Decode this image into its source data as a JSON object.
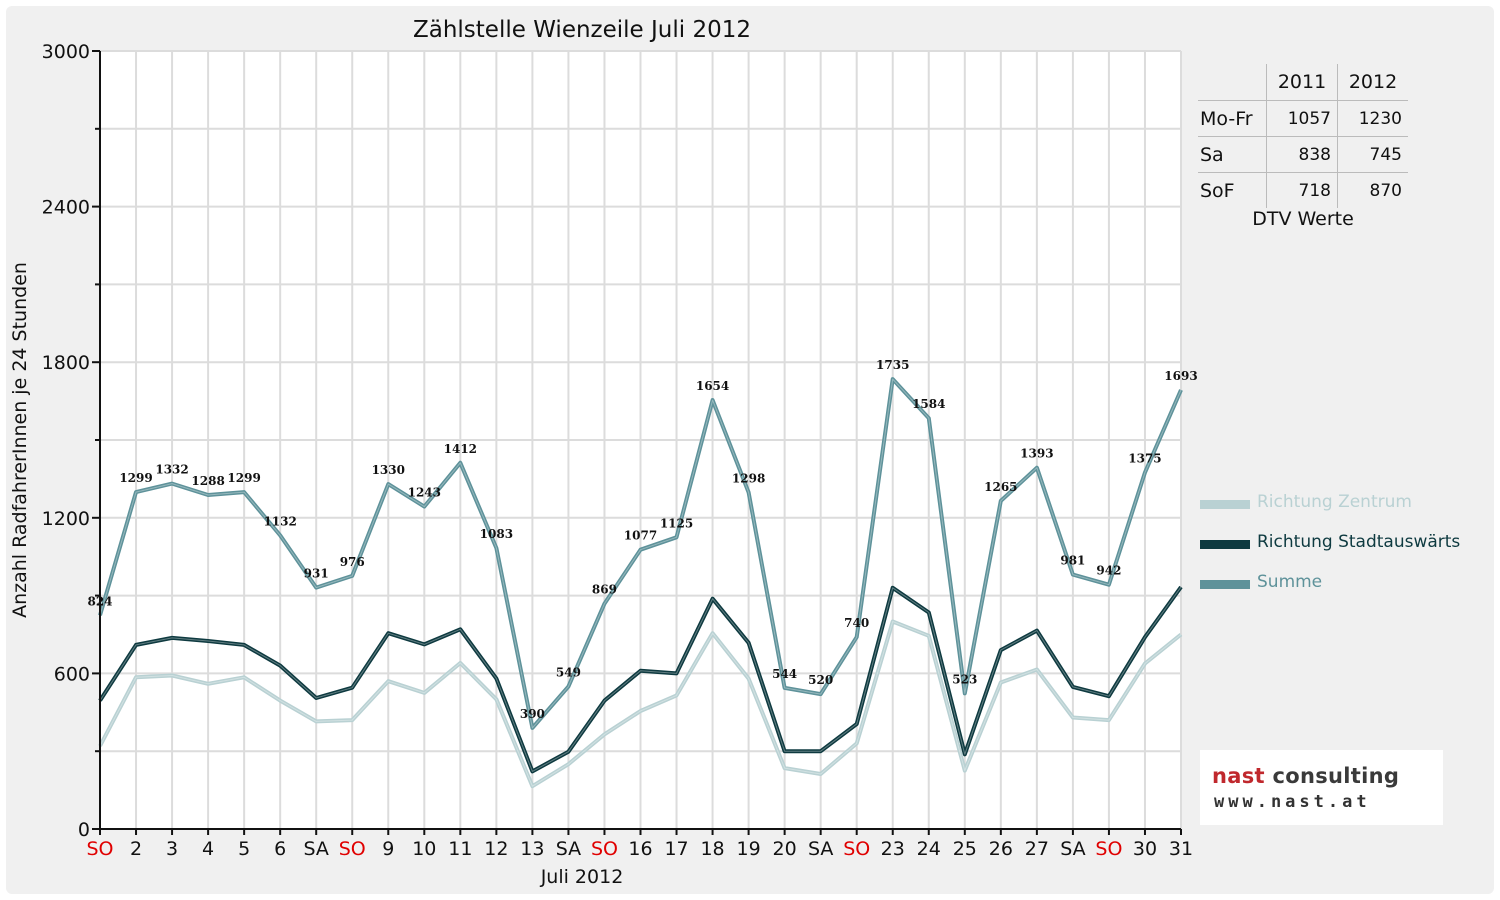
{
  "chart_data": {
    "type": "line",
    "title": "Zählstelle Wienzeile Juli 2012",
    "xlabel": "Juli 2012",
    "ylabel": "Anzahl RadfahrerInnen je 24 Stunden",
    "ylim": [
      0,
      3000
    ],
    "yticks": [
      "0",
      "600",
      "1200",
      "1800",
      "2400",
      "3000"
    ],
    "grid": true,
    "legend_position": "right",
    "categories": [
      "SO",
      "2",
      "3",
      "4",
      "5",
      "6",
      "SA",
      "SO",
      "9",
      "10",
      "11",
      "12",
      "13",
      "SA",
      "SO",
      "16",
      "17",
      "18",
      "19",
      "20",
      "SA",
      "SO",
      "23",
      "24",
      "25",
      "26",
      "27",
      "SA",
      "SO",
      "30",
      "31"
    ],
    "sunday_color": "#e00000",
    "series": [
      {
        "name": "Richtung Zentrum",
        "color": "#b9d1d3",
        "values": [
          320,
          585,
          592,
          560,
          585,
          495,
          415,
          420,
          570,
          525,
          640,
          500,
          165,
          250,
          365,
          455,
          515,
          755,
          580,
          235,
          212,
          330,
          800,
          745,
          225,
          565,
          615,
          430,
          420,
          638,
          750
        ]
      },
      {
        "name": "Richtung Stadtauswärts",
        "color": "#0e3a40",
        "values": [
          495,
          710,
          737,
          725,
          710,
          630,
          505,
          545,
          755,
          712,
          770,
          580,
          222,
          298,
          495,
          610,
          600,
          888,
          718,
          300,
          300,
          405,
          930,
          835,
          288,
          690,
          765,
          548,
          512,
          740,
          933
        ]
      },
      {
        "name": "Summe",
        "color": "#5e929a",
        "values": [
          824,
          1299,
          1332,
          1288,
          1299,
          1132,
          931,
          976,
          1330,
          1243,
          1412,
          1083,
          390,
          549,
          869,
          1077,
          1125,
          1654,
          1298,
          544,
          520,
          740,
          1735,
          1584,
          523,
          1265,
          1393,
          981,
          942,
          1375,
          1693
        ],
        "labels": [
          "824",
          "1299",
          "1332",
          "1288",
          "1299",
          "1132",
          "931",
          "976",
          "1330",
          "1243",
          "1412",
          "1083",
          "390",
          "549",
          "869",
          "1077",
          "1125",
          "1654",
          "1298",
          "544",
          "520",
          "740",
          "1735",
          "1584",
          "523",
          "1265",
          "1393",
          "981",
          "942",
          "1375",
          "1693"
        ]
      }
    ]
  },
  "dtv_table": {
    "headers": [
      "",
      "2011",
      "2012"
    ],
    "rows": [
      {
        "label": "Mo-Fr",
        "v2011": "1057",
        "v2012": "1230"
      },
      {
        "label": "Sa",
        "v2011": "838",
        "v2012": "745"
      },
      {
        "label": "SoF",
        "v2011": "718",
        "v2012": "870"
      }
    ],
    "caption": "DTV Werte"
  },
  "logo": {
    "word_a": "nast",
    "word_b": " consulting",
    "url": "www.nast.at"
  }
}
